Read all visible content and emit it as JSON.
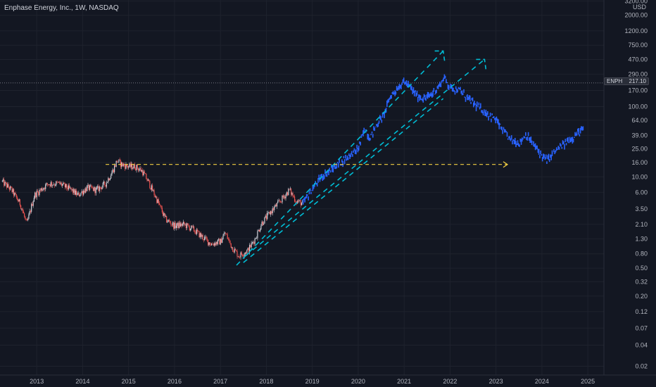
{
  "header": {
    "title": "Enphase Energy, Inc., 1W, NASDAQ"
  },
  "price_scale": {
    "currency": "USD",
    "current_symbol": "ENPH",
    "current_value": "217.10"
  },
  "colors": {
    "background": "#131722",
    "grid": "#1e222d",
    "candle_up": "#d1d4dc",
    "candle_down": "#ef5350",
    "projection": "#2962ff",
    "channel": "#00bcd4",
    "support": "#f5d142"
  },
  "chart_data": {
    "type": "line",
    "title": "Enphase Energy, Inc., 1W, NASDAQ",
    "y_scale": "log",
    "ylim": [
      0.015,
      3300
    ],
    "xlim": [
      2012.2,
      2025.35
    ],
    "grid": true,
    "x_ticks": [
      "2013",
      "2014",
      "2015",
      "2016",
      "2017",
      "2018",
      "2019",
      "2020",
      "2021",
      "2022",
      "2023",
      "2024",
      "2025"
    ],
    "y_ticks": [
      "3200.00",
      "2000.00",
      "1200.00",
      "750.00",
      "470.00",
      "290.00",
      "170.00",
      "100.00",
      "64.00",
      "39.00",
      "25.00",
      "16.00",
      "10.00",
      "6.00",
      "3.50",
      "2.10",
      "1.30",
      "0.80",
      "0.50",
      "0.32",
      "0.20",
      "0.12",
      "0.07",
      "0.04",
      "0.02"
    ],
    "current_price": 217.1,
    "series": [
      {
        "type": "candlestick",
        "points": [
          [
            2012.25,
            8.5
          ],
          [
            2012.45,
            6.5
          ],
          [
            2012.65,
            4.0
          ],
          [
            2012.78,
            2.1
          ],
          [
            2012.95,
            5.5
          ],
          [
            2013.25,
            8.0
          ],
          [
            2013.5,
            8.0
          ],
          [
            2013.75,
            6.5
          ],
          [
            2013.9,
            5.5
          ],
          [
            2014.1,
            7.0
          ],
          [
            2014.3,
            6.5
          ],
          [
            2014.5,
            8.0
          ],
          [
            2014.65,
            12.0
          ],
          [
            2014.75,
            17.0
          ],
          [
            2014.85,
            15.0
          ],
          [
            2015.0,
            14.0
          ],
          [
            2015.15,
            14.0
          ],
          [
            2015.3,
            12.0
          ],
          [
            2015.45,
            8.0
          ],
          [
            2015.6,
            5.0
          ],
          [
            2015.8,
            2.5
          ],
          [
            2016.0,
            2.0
          ],
          [
            2016.2,
            2.1
          ],
          [
            2016.4,
            1.8
          ],
          [
            2016.6,
            1.4
          ],
          [
            2016.8,
            1.1
          ],
          [
            2017.0,
            1.2
          ],
          [
            2017.1,
            1.6
          ],
          [
            2017.25,
            1.0
          ],
          [
            2017.4,
            0.75
          ],
          [
            2017.6,
            0.9
          ],
          [
            2017.75,
            1.3
          ],
          [
            2017.9,
            2.2
          ],
          [
            2018.1,
            3.2
          ],
          [
            2018.3,
            4.5
          ],
          [
            2018.5,
            6.5
          ],
          [
            2018.65,
            4.5
          ],
          [
            2018.8,
            4.2
          ]
        ]
      },
      {
        "type": "projection",
        "points": [
          [
            2018.8,
            4.2
          ],
          [
            2018.95,
            6.0
          ],
          [
            2019.2,
            10.0
          ],
          [
            2019.5,
            14.0
          ],
          [
            2019.8,
            20.0
          ],
          [
            2020.0,
            25.0
          ],
          [
            2020.15,
            50.0
          ],
          [
            2020.25,
            35.0
          ],
          [
            2020.4,
            55.0
          ],
          [
            2020.55,
            75.0
          ],
          [
            2020.7,
            140.0
          ],
          [
            2020.85,
            180.0
          ],
          [
            2021.0,
            230.0
          ],
          [
            2021.15,
            180.0
          ],
          [
            2021.3,
            140.0
          ],
          [
            2021.45,
            130.0
          ],
          [
            2021.6,
            150.0
          ],
          [
            2021.75,
            190.0
          ],
          [
            2021.87,
            260.0
          ],
          [
            2022.0,
            190.0
          ],
          [
            2022.2,
            170.0
          ],
          [
            2022.4,
            130.0
          ],
          [
            2022.6,
            100.0
          ],
          [
            2022.8,
            80.0
          ],
          [
            2023.0,
            65.0
          ],
          [
            2023.15,
            45.0
          ],
          [
            2023.3,
            35.0
          ],
          [
            2023.5,
            30.0
          ],
          [
            2023.65,
            40.0
          ],
          [
            2023.8,
            30.0
          ],
          [
            2024.0,
            20.0
          ],
          [
            2024.12,
            17.0
          ],
          [
            2024.25,
            22.0
          ],
          [
            2024.45,
            28.0
          ],
          [
            2024.7,
            38.0
          ],
          [
            2024.9,
            48.0
          ]
        ]
      }
    ],
    "annotations": [
      {
        "type": "line",
        "dashed": true,
        "from": [
          2017.35,
          0.55
        ],
        "to": [
          2021.85,
          620.0
        ]
      },
      {
        "type": "line",
        "dashed": true,
        "from": [
          2017.55,
          0.75
        ],
        "to": [
          2022.75,
          470.0
        ]
      },
      {
        "type": "line",
        "dashed": true,
        "from": [
          2017.5,
          0.6
        ],
        "to": [
          2021.85,
          130.0
        ]
      },
      {
        "type": "arrow",
        "dashed": true,
        "from": [
          2014.5,
          15.0
        ],
        "to": [
          2023.25,
          15.0
        ]
      }
    ]
  }
}
